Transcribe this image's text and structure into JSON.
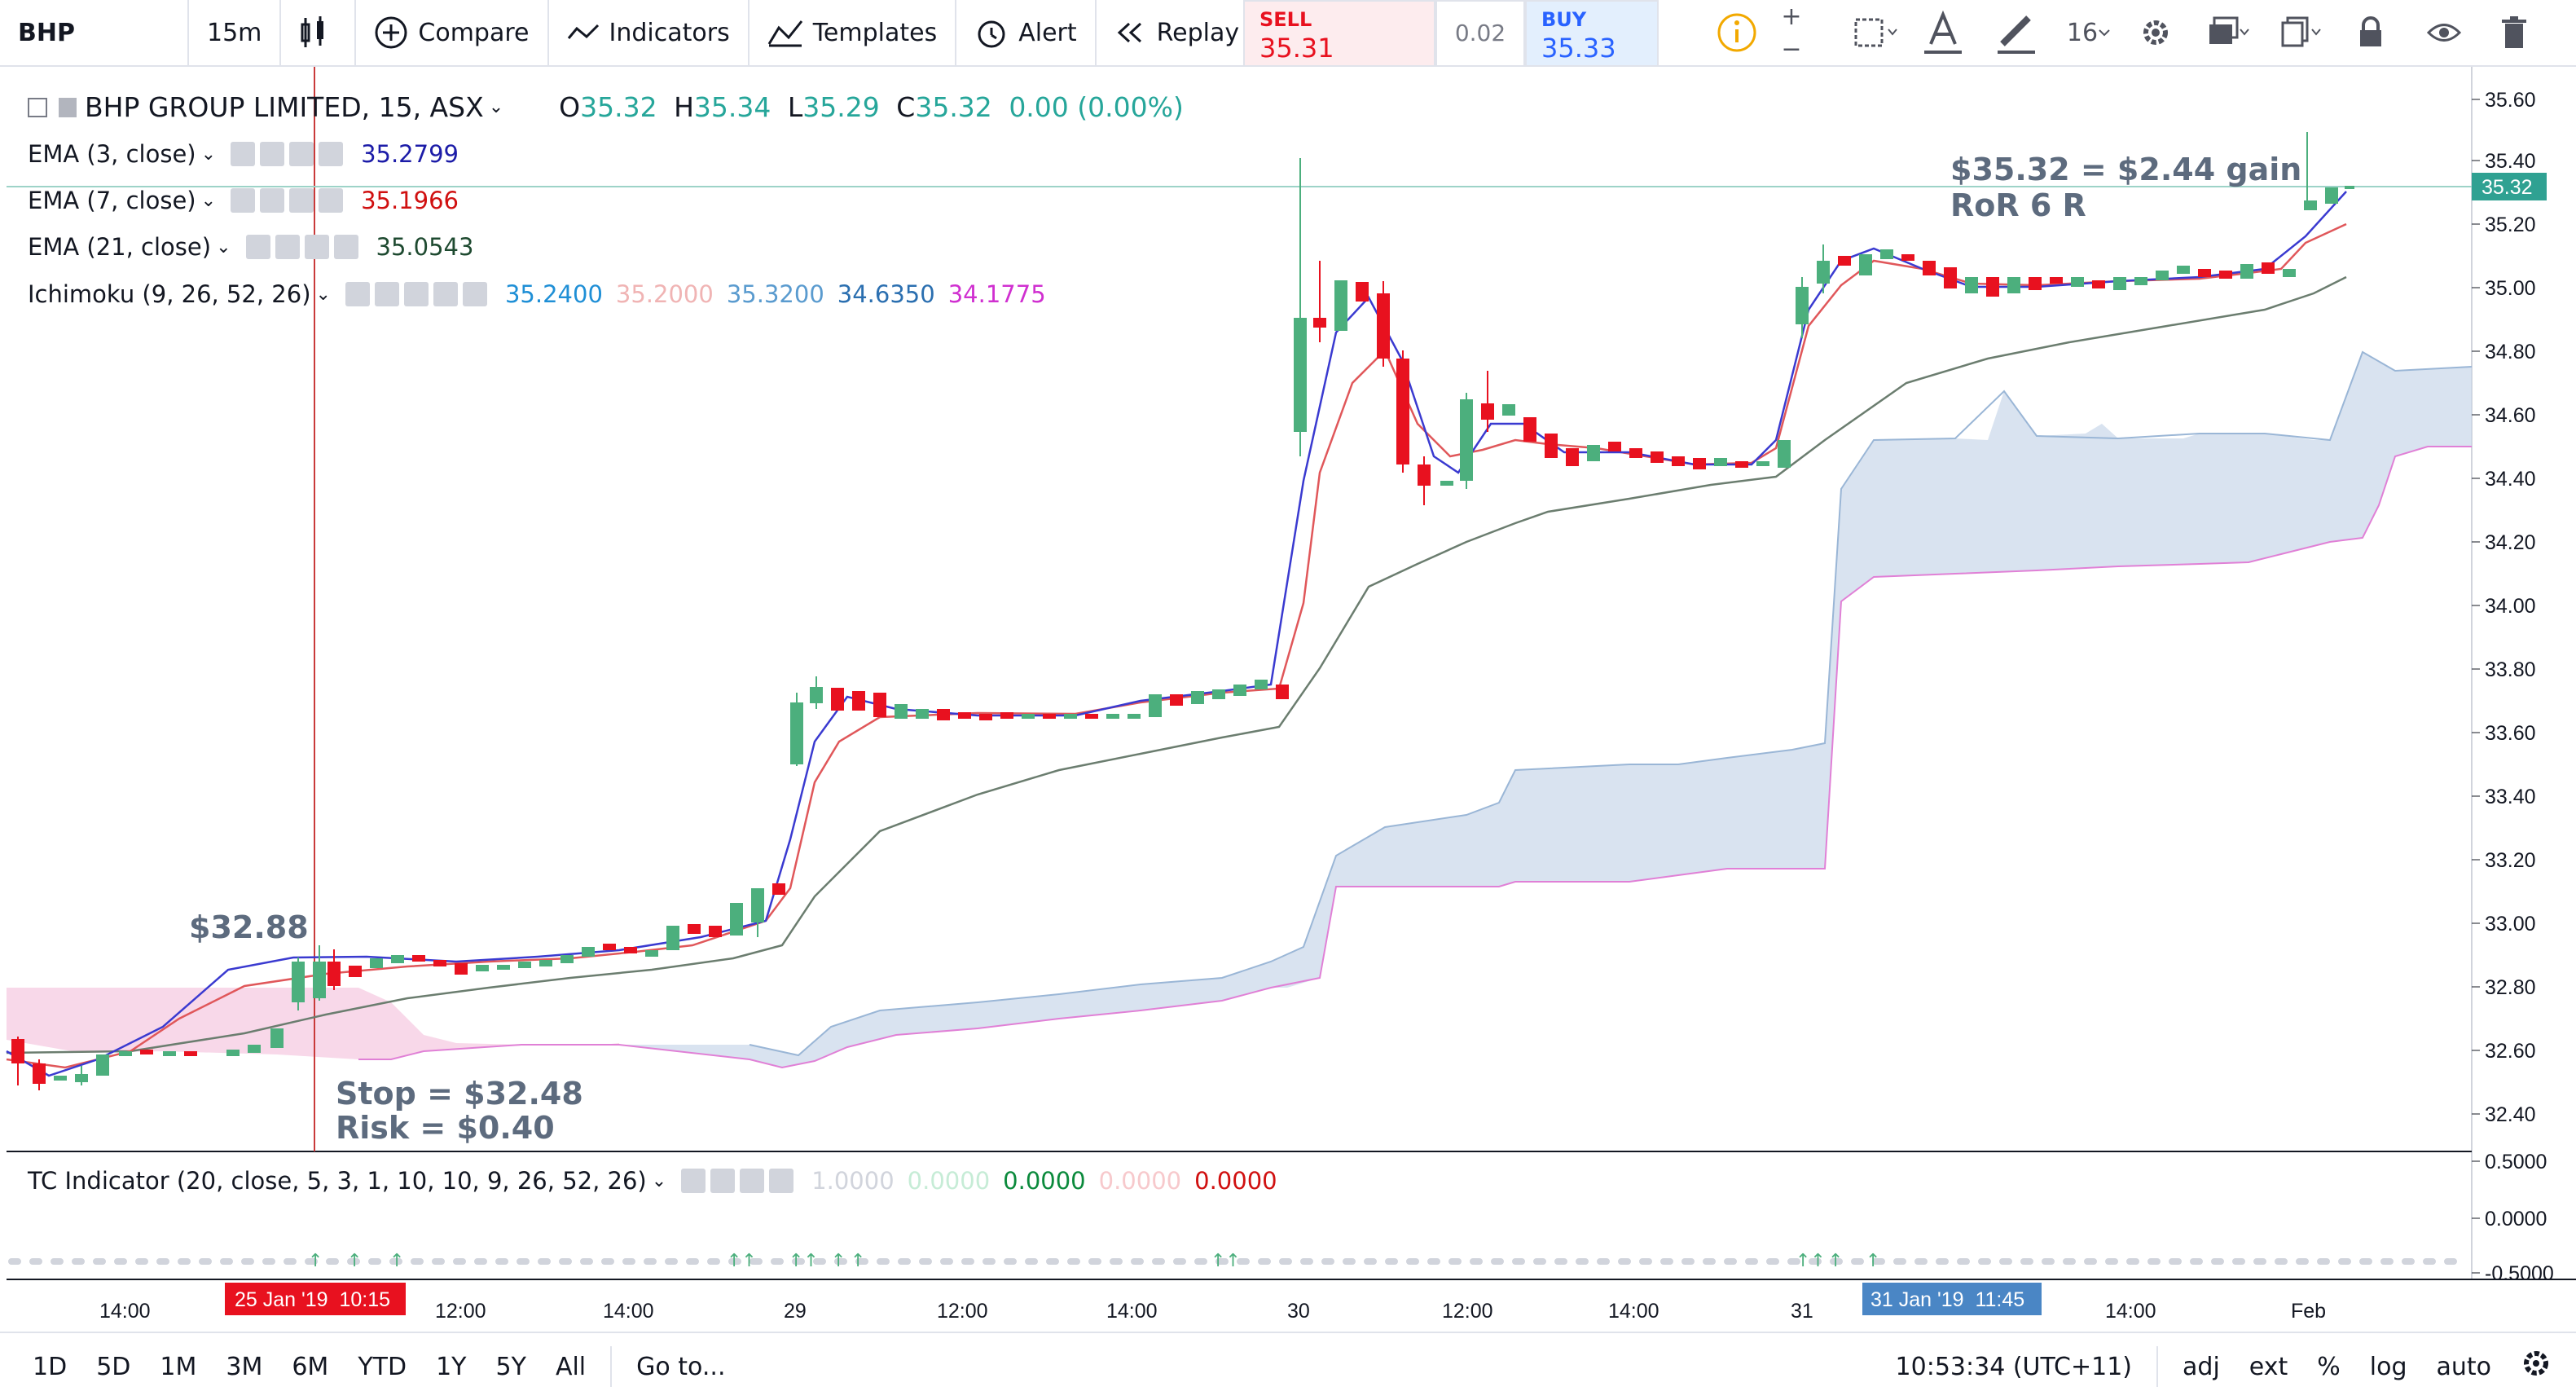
{
  "toolbar": {
    "symbol": "BHP",
    "interval": "15m",
    "compare_label": "Compare",
    "indicators_label": "Indicators",
    "templates_label": "Templates",
    "alert_label": "Alert",
    "replay_label": "Replay",
    "font_size": "16",
    "sell": {
      "label": "SELL",
      "price": "35.31"
    },
    "spread": "0.02",
    "buy": {
      "label": "BUY",
      "price": "35.33"
    }
  },
  "legend": {
    "title": "BHP GROUP LIMITED, 15, ASX",
    "ohlc": {
      "o_label": "O",
      "o": "35.32",
      "h_label": "H",
      "h": "35.34",
      "l_label": "L",
      "l": "35.29",
      "c_label": "C",
      "c": "35.32",
      "change": "0.00 (0.00%)"
    },
    "ema3": {
      "label": "EMA (3, close)",
      "value": "35.2799"
    },
    "ema7": {
      "label": "EMA (7, close)",
      "value": "35.1966"
    },
    "ema21": {
      "label": "EMA (21, close)",
      "value": "35.0543"
    },
    "ichimoku": {
      "label": "Ichimoku (9, 26, 52, 26)",
      "v1": "35.2400",
      "v2": "35.2000",
      "v3": "35.3200",
      "v4": "34.6350",
      "v5": "34.1775"
    },
    "tc": {
      "label": "TC Indicator (20, close, 5, 3, 1, 10, 10, 9, 26, 52, 26)",
      "v1": "1.0000",
      "v2": "0.0000",
      "v3": "0.0000",
      "v4": "0.0000",
      "v5": "0.0000"
    }
  },
  "annotations": {
    "entry": "$32.88",
    "stop": "Stop = $32.48",
    "risk": "Risk = $0.40",
    "gain": "$35.32 = $2.44 gain",
    "ror": "RoR 6 R"
  },
  "price_axis": {
    "ticks": [
      "35.60",
      "35.40",
      "35.20",
      "35.00",
      "34.80",
      "34.60",
      "34.40",
      "34.20",
      "34.00",
      "33.80",
      "33.60",
      "33.40",
      "33.20",
      "33.00",
      "32.80",
      "32.60",
      "32.40"
    ],
    "current": "35.32"
  },
  "indicator_axis": {
    "ticks": [
      "0.5000",
      "0.0000",
      "-0.5000"
    ]
  },
  "time_axis": {
    "labels": [
      "14:00",
      "12:00",
      "14:00",
      "29",
      "12:00",
      "14:00",
      "30",
      "12:00",
      "14:00",
      "31",
      "14:00",
      "Feb"
    ],
    "crosshair_date": "25 Jan '19  10:15",
    "marker_date": "31 Jan '19  11:45"
  },
  "bottom": {
    "ranges": [
      "1D",
      "5D",
      "1M",
      "3M",
      "6M",
      "YTD",
      "1Y",
      "5Y",
      "All"
    ],
    "goto": "Go to...",
    "time": "10:53:34 (UTC+11)",
    "adj": "adj",
    "ext": "ext",
    "pct": "%",
    "log": "log",
    "auto": "auto"
  },
  "colors": {
    "up": "#4caf7d",
    "down": "#e8111f",
    "ema3": "#3a3ad0",
    "ema7": "#e0575a",
    "ema21": "#6b7d6f",
    "cloud_up": "#c9d7ea",
    "cloud_down": "#f6cbe2",
    "crosshair": "#c93a3a",
    "date_tag": "#e8111f",
    "marker_tag": "#4a86c5"
  },
  "chart_data": {
    "type": "candlestick",
    "x": [
      "25 Jan",
      "29 Jan",
      "30 Jan",
      "31 Jan",
      "Feb"
    ],
    "ylim": [
      32.4,
      35.6
    ],
    "candles_close": [
      32.6,
      32.5,
      32.6,
      32.6,
      32.88,
      32.9,
      32.88,
      32.85,
      32.9,
      33.1,
      33.7,
      33.65,
      33.65,
      33.7,
      33.75,
      34.9,
      35.0,
      34.4,
      34.6,
      34.45,
      34.45,
      34.5,
      35.0,
      35.05,
      35.05,
      35.05,
      35.08,
      35.32
    ]
  }
}
